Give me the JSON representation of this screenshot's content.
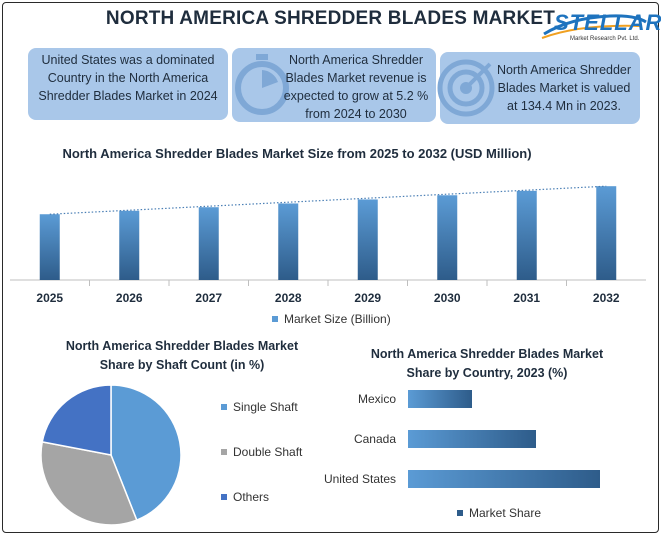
{
  "header": {
    "title": "NORTH AMERICA SHREDDER BLADES MARKET",
    "logo_word": "STELLAR",
    "logo_sub": "Market Research Pvt. Ltd."
  },
  "cards": [
    {
      "text": "United States was a dominated Country in the North America Shredder Blades Market in 2024",
      "icon": "none"
    },
    {
      "text": "North America Shredder Blades Market revenue is expected to grow at 5.2 % from 2024 to 2030",
      "icon": "stopwatch-icon"
    },
    {
      "text": "North America Shredder Blades Market is valued at 134.4 Mn in 2023.",
      "icon": "target-icon"
    }
  ],
  "colors": {
    "card_bg": "#a9c7e9",
    "bar_light": "#5b9bd5",
    "bar_dark": "#2e5c8a",
    "pie_single": "#5b9bd5",
    "pie_double": "#a5a5a5",
    "pie_others": "#4472c4"
  },
  "chart_data": [
    {
      "type": "bar",
      "title": "North America Shredder Blades Market Size from 2025 to 2032 (USD Million)",
      "categories": [
        "2025",
        "2026",
        "2027",
        "2028",
        "2029",
        "2030",
        "2031",
        "2032"
      ],
      "series": [
        {
          "name": "Market Size (Billion)",
          "values": [
            141.4,
            148.8,
            156.5,
            164.6,
            173.2,
            182.2,
            191.7,
            201.7
          ]
        }
      ],
      "ylim": [
        0,
        215
      ],
      "trendline": true,
      "legend": "bottom",
      "grid": false
    },
    {
      "type": "pie",
      "title": "North America Shredder Blades Market Share by Shaft Count (in %)",
      "labels": [
        "Single Shaft",
        "Double Shaft",
        "Others"
      ],
      "values": [
        44,
        34,
        22
      ],
      "legend": "right"
    },
    {
      "type": "bar",
      "orientation": "horizontal",
      "title": "North America Shredder Blades Market Share by Country, 2023 (%)",
      "categories": [
        "Mexico",
        "Canada",
        "United States"
      ],
      "series": [
        {
          "name": "Market Share",
          "values": [
            16,
            32,
            48
          ]
        }
      ],
      "xlim": [
        0,
        50
      ],
      "legend": "bottom",
      "grid": false
    }
  ]
}
